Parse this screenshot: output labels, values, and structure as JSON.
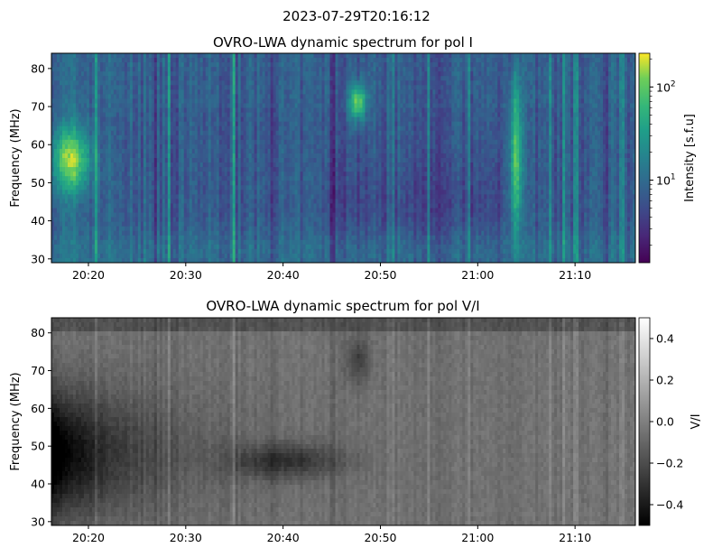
{
  "suptitle": "2023-07-29T20:16:12",
  "chart_data": [
    {
      "type": "heatmap",
      "title": "OVRO-LWA dynamic spectrum for pol I",
      "xlabel": "",
      "ylabel": "Frequency (MHz)",
      "x_ticks": [
        "20:20",
        "20:30",
        "20:40",
        "20:50",
        "21:00",
        "21:10"
      ],
      "x_tick_minutes": [
        3.8,
        13.8,
        23.8,
        33.8,
        43.8,
        53.8
      ],
      "x_range_minutes": [
        0,
        60
      ],
      "y_ticks": [
        30,
        40,
        50,
        60,
        70,
        80
      ],
      "ylim": [
        29,
        84
      ],
      "colormap": "viridis",
      "color_scale": "log",
      "colorbar": {
        "label": "Intensity [s.f.u]",
        "ticks": [
          {
            "value": 10,
            "base": "10",
            "exp": "1"
          },
          {
            "value": 100,
            "base": "10",
            "exp": "2"
          }
        ],
        "range": [
          1.3,
          230
        ]
      },
      "features": [
        {
          "name": "strong low-frequency emission",
          "t_start_min": 0,
          "t_end_min": 4,
          "f_low_mhz": 46,
          "f_high_mhz": 66
        },
        {
          "name": "burst",
          "t_start_min": 31,
          "t_end_min": 32,
          "f_low_mhz": 66,
          "f_high_mhz": 76
        },
        {
          "name": "broadband spike",
          "t_start_min": 47.5,
          "t_end_min": 48,
          "f_low_mhz": 29,
          "f_high_mhz": 84
        }
      ]
    },
    {
      "type": "heatmap",
      "title": "OVRO-LWA dynamic spectrum for pol V/I",
      "xlabel": "",
      "ylabel": "Frequency (MHz)",
      "x_ticks": [
        "20:20",
        "20:30",
        "20:40",
        "20:50",
        "21:00",
        "21:10"
      ],
      "x_tick_minutes": [
        3.8,
        13.8,
        23.8,
        33.8,
        43.8,
        53.8
      ],
      "x_range_minutes": [
        0,
        60
      ],
      "y_ticks": [
        30,
        40,
        50,
        60,
        70,
        80
      ],
      "ylim": [
        29,
        84
      ],
      "colormap": "gray",
      "colorbar": {
        "label": "V/I",
        "ticks": [
          {
            "value": 0.4,
            "label": "0.4"
          },
          {
            "value": 0.2,
            "label": "0.2"
          },
          {
            "value": 0.0,
            "label": "0.0"
          },
          {
            "value": -0.2,
            "label": "−0.2"
          },
          {
            "value": -0.4,
            "label": "−0.4"
          }
        ],
        "range": [
          -0.5,
          0.5
        ]
      }
    }
  ]
}
